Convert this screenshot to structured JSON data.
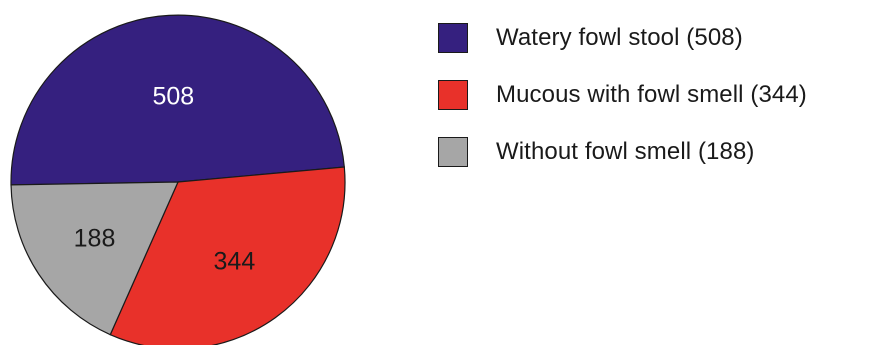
{
  "chart_data": {
    "type": "pie",
    "slices": [
      {
        "label": "508",
        "legend": "Watery fowl stool (508)",
        "value": 508,
        "color": "#35207f",
        "label_color": "#ffffff"
      },
      {
        "label": "344",
        "legend": "Mucous with fowl smell (344)",
        "value": 344,
        "color": "#e8312a",
        "label_color": "#1a1a1a"
      },
      {
        "label": "188",
        "legend": "Without fowl smell (188)",
        "value": 188,
        "color": "#a6a6a6",
        "label_color": "#1a1a1a"
      }
    ],
    "legend_position": "right"
  }
}
